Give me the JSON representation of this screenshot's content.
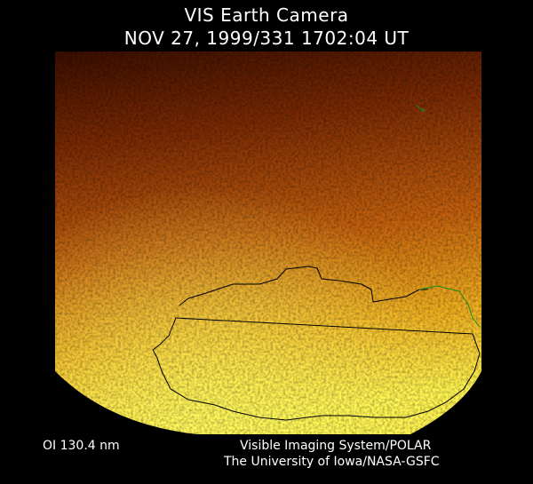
{
  "header": {
    "title": "VIS Earth Camera",
    "timestamp": "NOV 27, 1999/331 1702:04 UT"
  },
  "image": {
    "subject": "auroral oval with coastline overlay",
    "colors": {
      "dim": "#4a1200",
      "mid": "#c06010",
      "bright": "#fff040",
      "coastline": "#000000",
      "coastline_alt": "#1a8a1a"
    }
  },
  "footer": {
    "filter": "OI  130.4 nm",
    "instrument": "Visible Imaging System/POLAR",
    "institution": "The University of Iowa/NASA-GSFC"
  }
}
